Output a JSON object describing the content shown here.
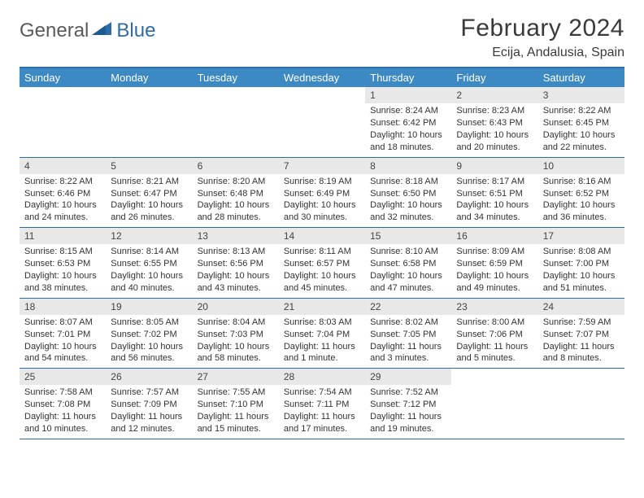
{
  "logo": {
    "text1": "General",
    "text2": "Blue"
  },
  "title": "February 2024",
  "location": "Ecija, Andalusia, Spain",
  "colors": {
    "header_blue": "#3d89c4",
    "border_blue": "#2d6ca8",
    "day_band": "#e8e8e8",
    "text": "#333333",
    "logo_gray": "#5a5a5a"
  },
  "day_names": [
    "Sunday",
    "Monday",
    "Tuesday",
    "Wednesday",
    "Thursday",
    "Friday",
    "Saturday"
  ],
  "weeks": [
    [
      {
        "blank": true
      },
      {
        "blank": true
      },
      {
        "blank": true
      },
      {
        "blank": true
      },
      {
        "n": "1",
        "sr": "8:24 AM",
        "ss": "6:42 PM",
        "dl": "10 hours and 18 minutes."
      },
      {
        "n": "2",
        "sr": "8:23 AM",
        "ss": "6:43 PM",
        "dl": "10 hours and 20 minutes."
      },
      {
        "n": "3",
        "sr": "8:22 AM",
        "ss": "6:45 PM",
        "dl": "10 hours and 22 minutes."
      }
    ],
    [
      {
        "n": "4",
        "sr": "8:22 AM",
        "ss": "6:46 PM",
        "dl": "10 hours and 24 minutes."
      },
      {
        "n": "5",
        "sr": "8:21 AM",
        "ss": "6:47 PM",
        "dl": "10 hours and 26 minutes."
      },
      {
        "n": "6",
        "sr": "8:20 AM",
        "ss": "6:48 PM",
        "dl": "10 hours and 28 minutes."
      },
      {
        "n": "7",
        "sr": "8:19 AM",
        "ss": "6:49 PM",
        "dl": "10 hours and 30 minutes."
      },
      {
        "n": "8",
        "sr": "8:18 AM",
        "ss": "6:50 PM",
        "dl": "10 hours and 32 minutes."
      },
      {
        "n": "9",
        "sr": "8:17 AM",
        "ss": "6:51 PM",
        "dl": "10 hours and 34 minutes."
      },
      {
        "n": "10",
        "sr": "8:16 AM",
        "ss": "6:52 PM",
        "dl": "10 hours and 36 minutes."
      }
    ],
    [
      {
        "n": "11",
        "sr": "8:15 AM",
        "ss": "6:53 PM",
        "dl": "10 hours and 38 minutes."
      },
      {
        "n": "12",
        "sr": "8:14 AM",
        "ss": "6:55 PM",
        "dl": "10 hours and 40 minutes."
      },
      {
        "n": "13",
        "sr": "8:13 AM",
        "ss": "6:56 PM",
        "dl": "10 hours and 43 minutes."
      },
      {
        "n": "14",
        "sr": "8:11 AM",
        "ss": "6:57 PM",
        "dl": "10 hours and 45 minutes."
      },
      {
        "n": "15",
        "sr": "8:10 AM",
        "ss": "6:58 PM",
        "dl": "10 hours and 47 minutes."
      },
      {
        "n": "16",
        "sr": "8:09 AM",
        "ss": "6:59 PM",
        "dl": "10 hours and 49 minutes."
      },
      {
        "n": "17",
        "sr": "8:08 AM",
        "ss": "7:00 PM",
        "dl": "10 hours and 51 minutes."
      }
    ],
    [
      {
        "n": "18",
        "sr": "8:07 AM",
        "ss": "7:01 PM",
        "dl": "10 hours and 54 minutes."
      },
      {
        "n": "19",
        "sr": "8:05 AM",
        "ss": "7:02 PM",
        "dl": "10 hours and 56 minutes."
      },
      {
        "n": "20",
        "sr": "8:04 AM",
        "ss": "7:03 PM",
        "dl": "10 hours and 58 minutes."
      },
      {
        "n": "21",
        "sr": "8:03 AM",
        "ss": "7:04 PM",
        "dl": "11 hours and 1 minute."
      },
      {
        "n": "22",
        "sr": "8:02 AM",
        "ss": "7:05 PM",
        "dl": "11 hours and 3 minutes."
      },
      {
        "n": "23",
        "sr": "8:00 AM",
        "ss": "7:06 PM",
        "dl": "11 hours and 5 minutes."
      },
      {
        "n": "24",
        "sr": "7:59 AM",
        "ss": "7:07 PM",
        "dl": "11 hours and 8 minutes."
      }
    ],
    [
      {
        "n": "25",
        "sr": "7:58 AM",
        "ss": "7:08 PM",
        "dl": "11 hours and 10 minutes."
      },
      {
        "n": "26",
        "sr": "7:57 AM",
        "ss": "7:09 PM",
        "dl": "11 hours and 12 minutes."
      },
      {
        "n": "27",
        "sr": "7:55 AM",
        "ss": "7:10 PM",
        "dl": "11 hours and 15 minutes."
      },
      {
        "n": "28",
        "sr": "7:54 AM",
        "ss": "7:11 PM",
        "dl": "11 hours and 17 minutes."
      },
      {
        "n": "29",
        "sr": "7:52 AM",
        "ss": "7:12 PM",
        "dl": "11 hours and 19 minutes."
      },
      {
        "blank": true
      },
      {
        "blank": true
      }
    ]
  ],
  "labels": {
    "sunrise": "Sunrise:",
    "sunset": "Sunset:",
    "daylight": "Daylight:"
  }
}
